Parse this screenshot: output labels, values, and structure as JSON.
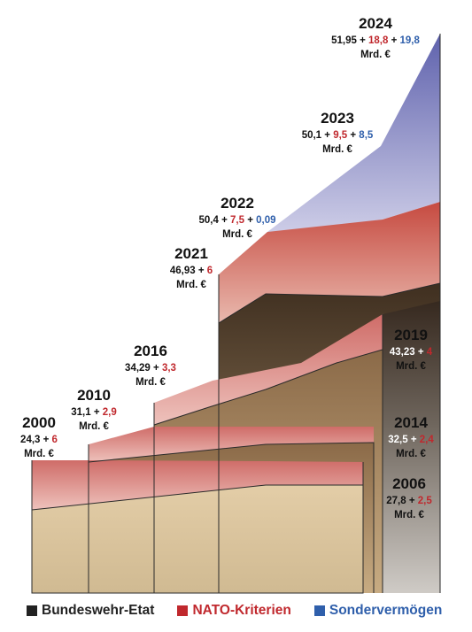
{
  "chart_data": {
    "type": "area",
    "title": "",
    "xlabel": "",
    "ylabel": "",
    "unit": "Mrd. €",
    "series": [
      {
        "name": "Bundeswehr-Etat",
        "color": "#222222"
      },
      {
        "name": "NATO-Kriterien",
        "color": "#c0282d"
      },
      {
        "name": "Sondervermögen",
        "color": "#2f5fab"
      }
    ],
    "points": [
      {
        "year": "2000",
        "etat": "24,3",
        "nato": "6",
        "unit": "Mrd. €"
      },
      {
        "year": "2006",
        "etat": "27,8",
        "nato": "2,5",
        "unit": "Mrd. €"
      },
      {
        "year": "2010",
        "etat": "31,1",
        "nato": "2,9",
        "unit": "Mrd. €"
      },
      {
        "year": "2014",
        "etat": "32,5",
        "nato": "2,4",
        "unit": "Mrd. €"
      },
      {
        "year": "2016",
        "etat": "34,29",
        "nato": "3,3",
        "unit": "Mrd. €"
      },
      {
        "year": "2019",
        "etat": "43,23",
        "nato": "4",
        "unit": "Mrd. €"
      },
      {
        "year": "2021",
        "etat": "46,93",
        "nato": "6",
        "unit": "Mrd. €"
      },
      {
        "year": "2022",
        "etat": "50,4",
        "nato": "7,5",
        "sonder": "0,09",
        "unit": "Mrd. €"
      },
      {
        "year": "2023",
        "etat": "50,1",
        "nato": "9,5",
        "sonder": "8,5",
        "unit": "Mrd. €"
      },
      {
        "year": "2024",
        "etat": "51,95",
        "nato": "18,8",
        "sonder": "19,8",
        "unit": "Mrd. €"
      }
    ]
  },
  "legend": {
    "etat": "Bundeswehr-Etat",
    "nato": "NATO-Kriterien",
    "sonder": "Sondervermögen"
  },
  "colors": {
    "etat": "#222222",
    "nato": "#c0282d",
    "sonder": "#2f5fab",
    "text": "#111111"
  }
}
